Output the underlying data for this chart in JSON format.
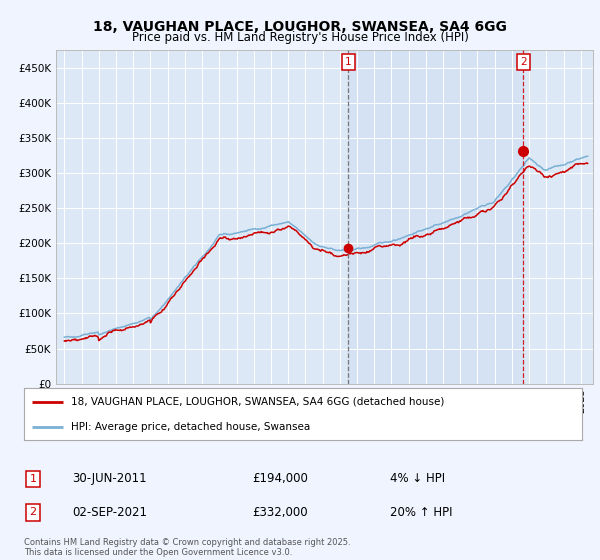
{
  "title": "18, VAUGHAN PLACE, LOUGHOR, SWANSEA, SA4 6GG",
  "subtitle": "Price paid vs. HM Land Registry's House Price Index (HPI)",
  "background_color": "#f0f4ff",
  "plot_bg_color": "#dce8f5",
  "grid_color": "#ffffff",
  "red_line_color": "#cc0000",
  "blue_line_color": "#7ab0d4",
  "sale1_date": 2011.5,
  "sale1_price": 194000,
  "sale1_label": "1",
  "sale2_date": 2021.67,
  "sale2_price": 332000,
  "sale2_label": "2",
  "legend_entry1": "18, VAUGHAN PLACE, LOUGHOR, SWANSEA, SA4 6GG (detached house)",
  "legend_entry2": "HPI: Average price, detached house, Swansea",
  "note1_label": "1",
  "note1_date": "30-JUN-2011",
  "note1_price": "£194,000",
  "note1_change": "4% ↓ HPI",
  "note2_label": "2",
  "note2_date": "02-SEP-2021",
  "note2_price": "£332,000",
  "note2_change": "20% ↑ HPI",
  "footer": "Contains HM Land Registry data © Crown copyright and database right 2025.\nThis data is licensed under the Open Government Licence v3.0.",
  "ylim": [
    0,
    475000
  ],
  "xlim_start": 1994.5,
  "xlim_end": 2025.7,
  "yticks": [
    0,
    50000,
    100000,
    150000,
    200000,
    250000,
    300000,
    350000,
    400000,
    450000
  ],
  "ylabels": [
    "£0",
    "£50K",
    "£100K",
    "£150K",
    "£200K",
    "£250K",
    "£300K",
    "£350K",
    "£400K",
    "£450K"
  ]
}
